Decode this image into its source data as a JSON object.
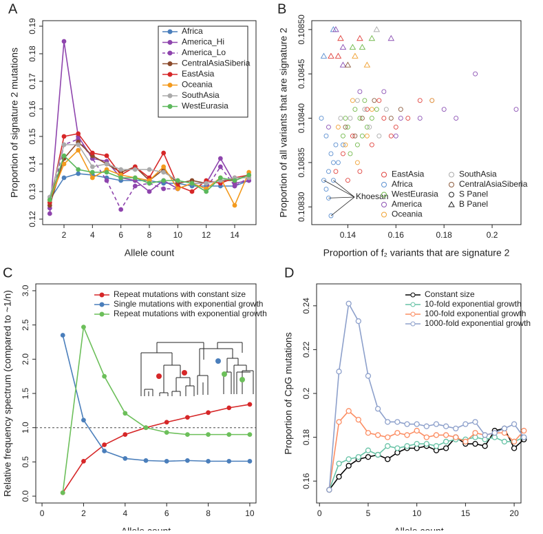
{
  "chart_data": [
    {
      "type": "line",
      "panel_label": "A",
      "xlabel": "Allele count",
      "ylabel": "Proportion of signature 2 mutations",
      "x": [
        1,
        2,
        3,
        4,
        5,
        6,
        7,
        8,
        9,
        10,
        11,
        12,
        13,
        14,
        15
      ],
      "xlim": [
        0.5,
        15.5
      ],
      "xticks": [
        2,
        4,
        6,
        8,
        10,
        12,
        14
      ],
      "ylim": [
        0.118,
        0.192
      ],
      "yticks": [
        0.12,
        0.13,
        0.14,
        0.15,
        0.16,
        0.17,
        0.18,
        0.19
      ],
      "legend": "top-right",
      "marker": "filled",
      "series": [
        {
          "name": "Africa",
          "color": "#4a7ebb",
          "values": [
            0.127,
            0.135,
            0.1365,
            0.136,
            0.135,
            0.134,
            0.134,
            0.134,
            0.133,
            0.133,
            0.132,
            0.132,
            0.132,
            0.132,
            0.134
          ]
        },
        {
          "name": "America_Hi",
          "color": "#8e44ad",
          "values": [
            0.122,
            0.1845,
            0.15,
            0.142,
            0.141,
            0.135,
            0.134,
            0.13,
            0.134,
            0.131,
            0.133,
            0.133,
            0.142,
            0.133,
            0.134
          ]
        },
        {
          "name": "America_Lo",
          "color": "#8e44ad",
          "dash": true,
          "values": [
            0.124,
            0.147,
            0.149,
            0.142,
            0.134,
            0.1235,
            0.132,
            0.133,
            0.131,
            0.131,
            0.133,
            0.131,
            0.139,
            0.132,
            0.135
          ]
        },
        {
          "name": "CentralAsiaSiberia",
          "color": "#8b4a2b",
          "values": [
            0.125,
            0.142,
            0.148,
            0.143,
            0.14,
            0.137,
            0.139,
            0.134,
            0.138,
            0.133,
            0.134,
            0.133,
            0.134,
            0.134,
            0.136
          ]
        },
        {
          "name": "EastAsia",
          "color": "#d62728",
          "values": [
            0.126,
            0.15,
            0.151,
            0.144,
            0.143,
            0.136,
            0.139,
            0.135,
            0.144,
            0.132,
            0.13,
            0.134,
            0.133,
            0.135,
            0.136
          ]
        },
        {
          "name": "Oceania",
          "color": "#f39a1e",
          "values": [
            0.127,
            0.14,
            0.145,
            0.135,
            0.138,
            0.136,
            0.135,
            0.134,
            0.139,
            0.131,
            0.133,
            0.131,
            0.135,
            0.125,
            0.137
          ]
        },
        {
          "name": "SouthAsia",
          "color": "#aaaaaa",
          "values": [
            0.128,
            0.147,
            0.147,
            0.139,
            0.14,
            0.138,
            0.138,
            0.138,
            0.137,
            0.134,
            0.133,
            0.133,
            0.134,
            0.135,
            0.135
          ]
        },
        {
          "name": "WestEurasia",
          "color": "#5cb85c",
          "values": [
            0.127,
            0.143,
            0.138,
            0.137,
            0.137,
            0.135,
            0.135,
            0.133,
            0.134,
            0.134,
            0.133,
            0.13,
            0.135,
            0.134,
            0.136
          ]
        }
      ]
    },
    {
      "type": "scatter",
      "panel_label": "B",
      "xlabel": "Proportion of f₂ variants that are signature 2",
      "ylabel": "Proportion of all variants that are signature 2",
      "xlim": [
        0.125,
        0.212
      ],
      "xticks": [
        0.14,
        0.16,
        0.18,
        0.2
      ],
      "ylim": [
        0.10828,
        0.10851
      ],
      "yticks": [
        {
          "value": 0.1083,
          "label": "0.10830"
        },
        0.10835,
        {
          "value": 0.1084,
          "label": "0.10840"
        },
        0.10845,
        {
          "value": 0.1085,
          "label": "0.10850"
        }
      ],
      "legend": "bottom-right",
      "annotation": "Khoesan",
      "shape_legend": [
        {
          "name": "S Panel",
          "shape": "circle"
        },
        {
          "name": "B Panel",
          "shape": "triangle"
        }
      ],
      "series": [
        {
          "name": "EastAsia",
          "color": "#e0413c",
          "x": [
            0.142,
            0.148,
            0.155,
            0.16,
            0.138,
            0.15,
            0.165,
            0.145,
            0.135,
            0.17,
            0.14,
            0.153,
            0.158,
            0.133,
            0.136,
            0.145,
            0.137
          ],
          "y": [
            0.10838,
            0.10841,
            0.1084,
            0.10839,
            0.10836,
            0.10837,
            0.1084,
            0.10834,
            0.10834,
            0.10842,
            0.10833,
            0.10842,
            0.10838,
            0.10847,
            0.10847,
            0.10849,
            0.10849
          ],
          "shapes": [
            "circle",
            "circle",
            "circle",
            "circle",
            "circle",
            "circle",
            "circle",
            "circle",
            "circle",
            "circle",
            "circle",
            "circle",
            "circle",
            "triangle",
            "triangle",
            "triangle",
            "triangle"
          ]
        },
        {
          "name": "Africa",
          "color": "#5b8fd0",
          "x": [
            0.131,
            0.133,
            0.135,
            0.132,
            0.13,
            0.134,
            0.133,
            0.131,
            0.136,
            0.138,
            0.129,
            0.132,
            0.134,
            0.13,
            0.134
          ],
          "y": [
            0.10838,
            0.10836,
            0.10837,
            0.10834,
            0.10833,
            0.10835,
            0.10829,
            0.10832,
            0.10835,
            0.10837,
            0.1084,
            0.10831,
            0.10833,
            0.10847,
            0.1085
          ],
          "shapes": [
            "circle",
            "circle",
            "circle",
            "circle",
            "circle",
            "circle",
            "circle",
            "circle",
            "circle",
            "circle",
            "circle",
            "circle",
            "circle",
            "triangle",
            "triangle"
          ]
        },
        {
          "name": "WestEurasia",
          "color": "#71b84a",
          "x": [
            0.14,
            0.145,
            0.143,
            0.148,
            0.15,
            0.138,
            0.144,
            0.152,
            0.141,
            0.146,
            0.139,
            0.147,
            0.142,
            0.15,
            0.146
          ],
          "y": [
            0.10839,
            0.1084,
            0.10841,
            0.10839,
            0.1084,
            0.10838,
            0.10837,
            0.10841,
            0.10836,
            0.10838,
            0.1084,
            0.10842,
            0.10848,
            0.10849,
            0.10848
          ],
          "shapes": [
            "circle",
            "circle",
            "circle",
            "circle",
            "circle",
            "circle",
            "circle",
            "circle",
            "circle",
            "circle",
            "circle",
            "circle",
            "triangle",
            "triangle",
            "triangle"
          ]
        },
        {
          "name": "America",
          "color": "#8a4fb3",
          "x": [
            0.193,
            0.21,
            0.18,
            0.185,
            0.175,
            0.162,
            0.16,
            0.155,
            0.17,
            0.145,
            0.132,
            0.135,
            0.138,
            0.158,
            0.138
          ],
          "y": [
            0.10845,
            0.10841,
            0.10841,
            0.1084,
            0.10842,
            0.1084,
            0.10838,
            0.10843,
            0.1084,
            0.10843,
            0.10839,
            0.1085,
            0.10848,
            0.10849,
            0.10846
          ],
          "shapes": [
            "circle",
            "circle",
            "circle",
            "circle",
            "circle",
            "circle",
            "circle",
            "circle",
            "circle",
            "circle",
            "circle",
            "triangle",
            "triangle",
            "triangle",
            "triangle"
          ]
        },
        {
          "name": "Oceania",
          "color": "#f0a030",
          "x": [
            0.142,
            0.148,
            0.139,
            0.15,
            0.136,
            0.175,
            0.144,
            0.143,
            0.148
          ],
          "y": [
            0.10842,
            0.10838,
            0.10837,
            0.10841,
            0.10839,
            0.10842,
            0.10835,
            0.10847,
            0.10846
          ],
          "shapes": [
            "circle",
            "circle",
            "circle",
            "circle",
            "circle",
            "circle",
            "circle",
            "triangle",
            "triangle"
          ]
        },
        {
          "name": "SouthAsia",
          "color": "#aaaaaa",
          "x": [
            0.141,
            0.147,
            0.149,
            0.153,
            0.137,
            0.144,
            0.156,
            0.152
          ],
          "y": [
            0.1084,
            0.10841,
            0.10839,
            0.10838,
            0.1084,
            0.10842,
            0.10841,
            0.1085
          ],
          "shapes": [
            "circle",
            "circle",
            "circle",
            "circle",
            "circle",
            "circle",
            "circle",
            "triangle"
          ]
        },
        {
          "name": "CentralAsiaSiberia",
          "color": "#8b5a3c",
          "x": [
            0.146,
            0.151,
            0.143,
            0.158,
            0.139,
            0.162,
            0.14
          ],
          "y": [
            0.1084,
            0.10842,
            0.10838,
            0.1084,
            0.10839,
            0.10841,
            0.10846
          ],
          "shapes": [
            "circle",
            "circle",
            "circle",
            "circle",
            "circle",
            "circle",
            "triangle"
          ]
        }
      ]
    },
    {
      "type": "line",
      "panel_label": "C",
      "xlabel": "Allele count",
      "ylabel": "Relative frequency spectrum (compared to ~1/n)",
      "x": [
        1,
        2,
        3,
        4,
        5,
        6,
        7,
        8,
        9,
        10
      ],
      "xlim": [
        -0.3,
        10.3
      ],
      "xticks": [
        0,
        2,
        4,
        6,
        8,
        10
      ],
      "ylim": [
        -0.1,
        3.1
      ],
      "yticks": [
        {
          "value": 0,
          "label": "0.0"
        },
        0.5,
        {
          "value": 1,
          "label": "1.0"
        },
        1.5,
        {
          "value": 2,
          "label": "2.0"
        },
        2.5,
        {
          "value": 3,
          "label": "3.0"
        }
      ],
      "hline": 1,
      "legend": "top",
      "marker": "filled",
      "series": [
        {
          "name": "Repeat mutations with constant size",
          "color": "#d62728",
          "values": [
            0.05,
            0.51,
            0.75,
            0.9,
            1.0,
            1.08,
            1.15,
            1.22,
            1.29,
            1.34
          ]
        },
        {
          "name": "Single mutations with exponential growth",
          "color": "#4a7ebb",
          "values": [
            2.35,
            1.11,
            0.66,
            0.55,
            0.52,
            0.51,
            0.52,
            0.51,
            0.51,
            0.51
          ]
        },
        {
          "name": "Repeat mutations with exponential growth",
          "color": "#6cbf5a",
          "values": [
            0.05,
            2.47,
            1.75,
            1.21,
            1.0,
            0.93,
            0.9,
            0.9,
            0.9,
            0.9
          ]
        }
      ]
    },
    {
      "type": "line",
      "panel_label": "D",
      "xlabel": "Allele count",
      "ylabel": "Proportion of CpG mutations",
      "x": [
        1,
        2,
        3,
        4,
        5,
        6,
        7,
        8,
        9,
        10,
        11,
        12,
        13,
        14,
        15,
        16,
        17,
        18,
        19,
        20,
        21
      ],
      "xlim": [
        -0.3,
        20.7
      ],
      "xticks": [
        0,
        5,
        10,
        15,
        20
      ],
      "ylim": [
        0.15,
        0.25
      ],
      "yticks": [
        0.16,
        0.18,
        0.2,
        0.22,
        0.24
      ],
      "legend": "top-right",
      "marker": "open",
      "series": [
        {
          "name": "Constant size",
          "color": "#000000",
          "values": [
            0.156,
            0.162,
            0.167,
            0.17,
            0.171,
            0.172,
            0.17,
            0.173,
            0.175,
            0.175,
            0.176,
            0.174,
            0.175,
            0.18,
            0.177,
            0.177,
            0.176,
            0.183,
            0.184,
            0.175,
            0.179
          ]
        },
        {
          "name": "10-fold exponential growth",
          "color": "#66c2a5",
          "values": [
            0.156,
            0.168,
            0.17,
            0.171,
            0.174,
            0.172,
            0.176,
            0.175,
            0.176,
            0.177,
            0.177,
            0.176,
            0.178,
            0.179,
            0.179,
            0.18,
            0.179,
            0.18,
            0.178,
            0.178,
            0.18
          ]
        },
        {
          "name": "100-fold exponential growth",
          "color": "#fc8d62",
          "values": [
            0.156,
            0.187,
            0.192,
            0.188,
            0.182,
            0.181,
            0.18,
            0.182,
            0.181,
            0.183,
            0.18,
            0.181,
            0.181,
            0.18,
            0.178,
            0.182,
            0.181,
            0.182,
            0.182,
            0.178,
            0.183
          ]
        },
        {
          "name": "1000-fold exponential growth",
          "color": "#8da0cb",
          "values": [
            0.156,
            0.21,
            0.241,
            0.233,
            0.208,
            0.193,
            0.187,
            0.187,
            0.186,
            0.186,
            0.185,
            0.186,
            0.185,
            0.184,
            0.186,
            0.187,
            0.181,
            0.182,
            0.184,
            0.186,
            0.18
          ]
        }
      ]
    }
  ]
}
